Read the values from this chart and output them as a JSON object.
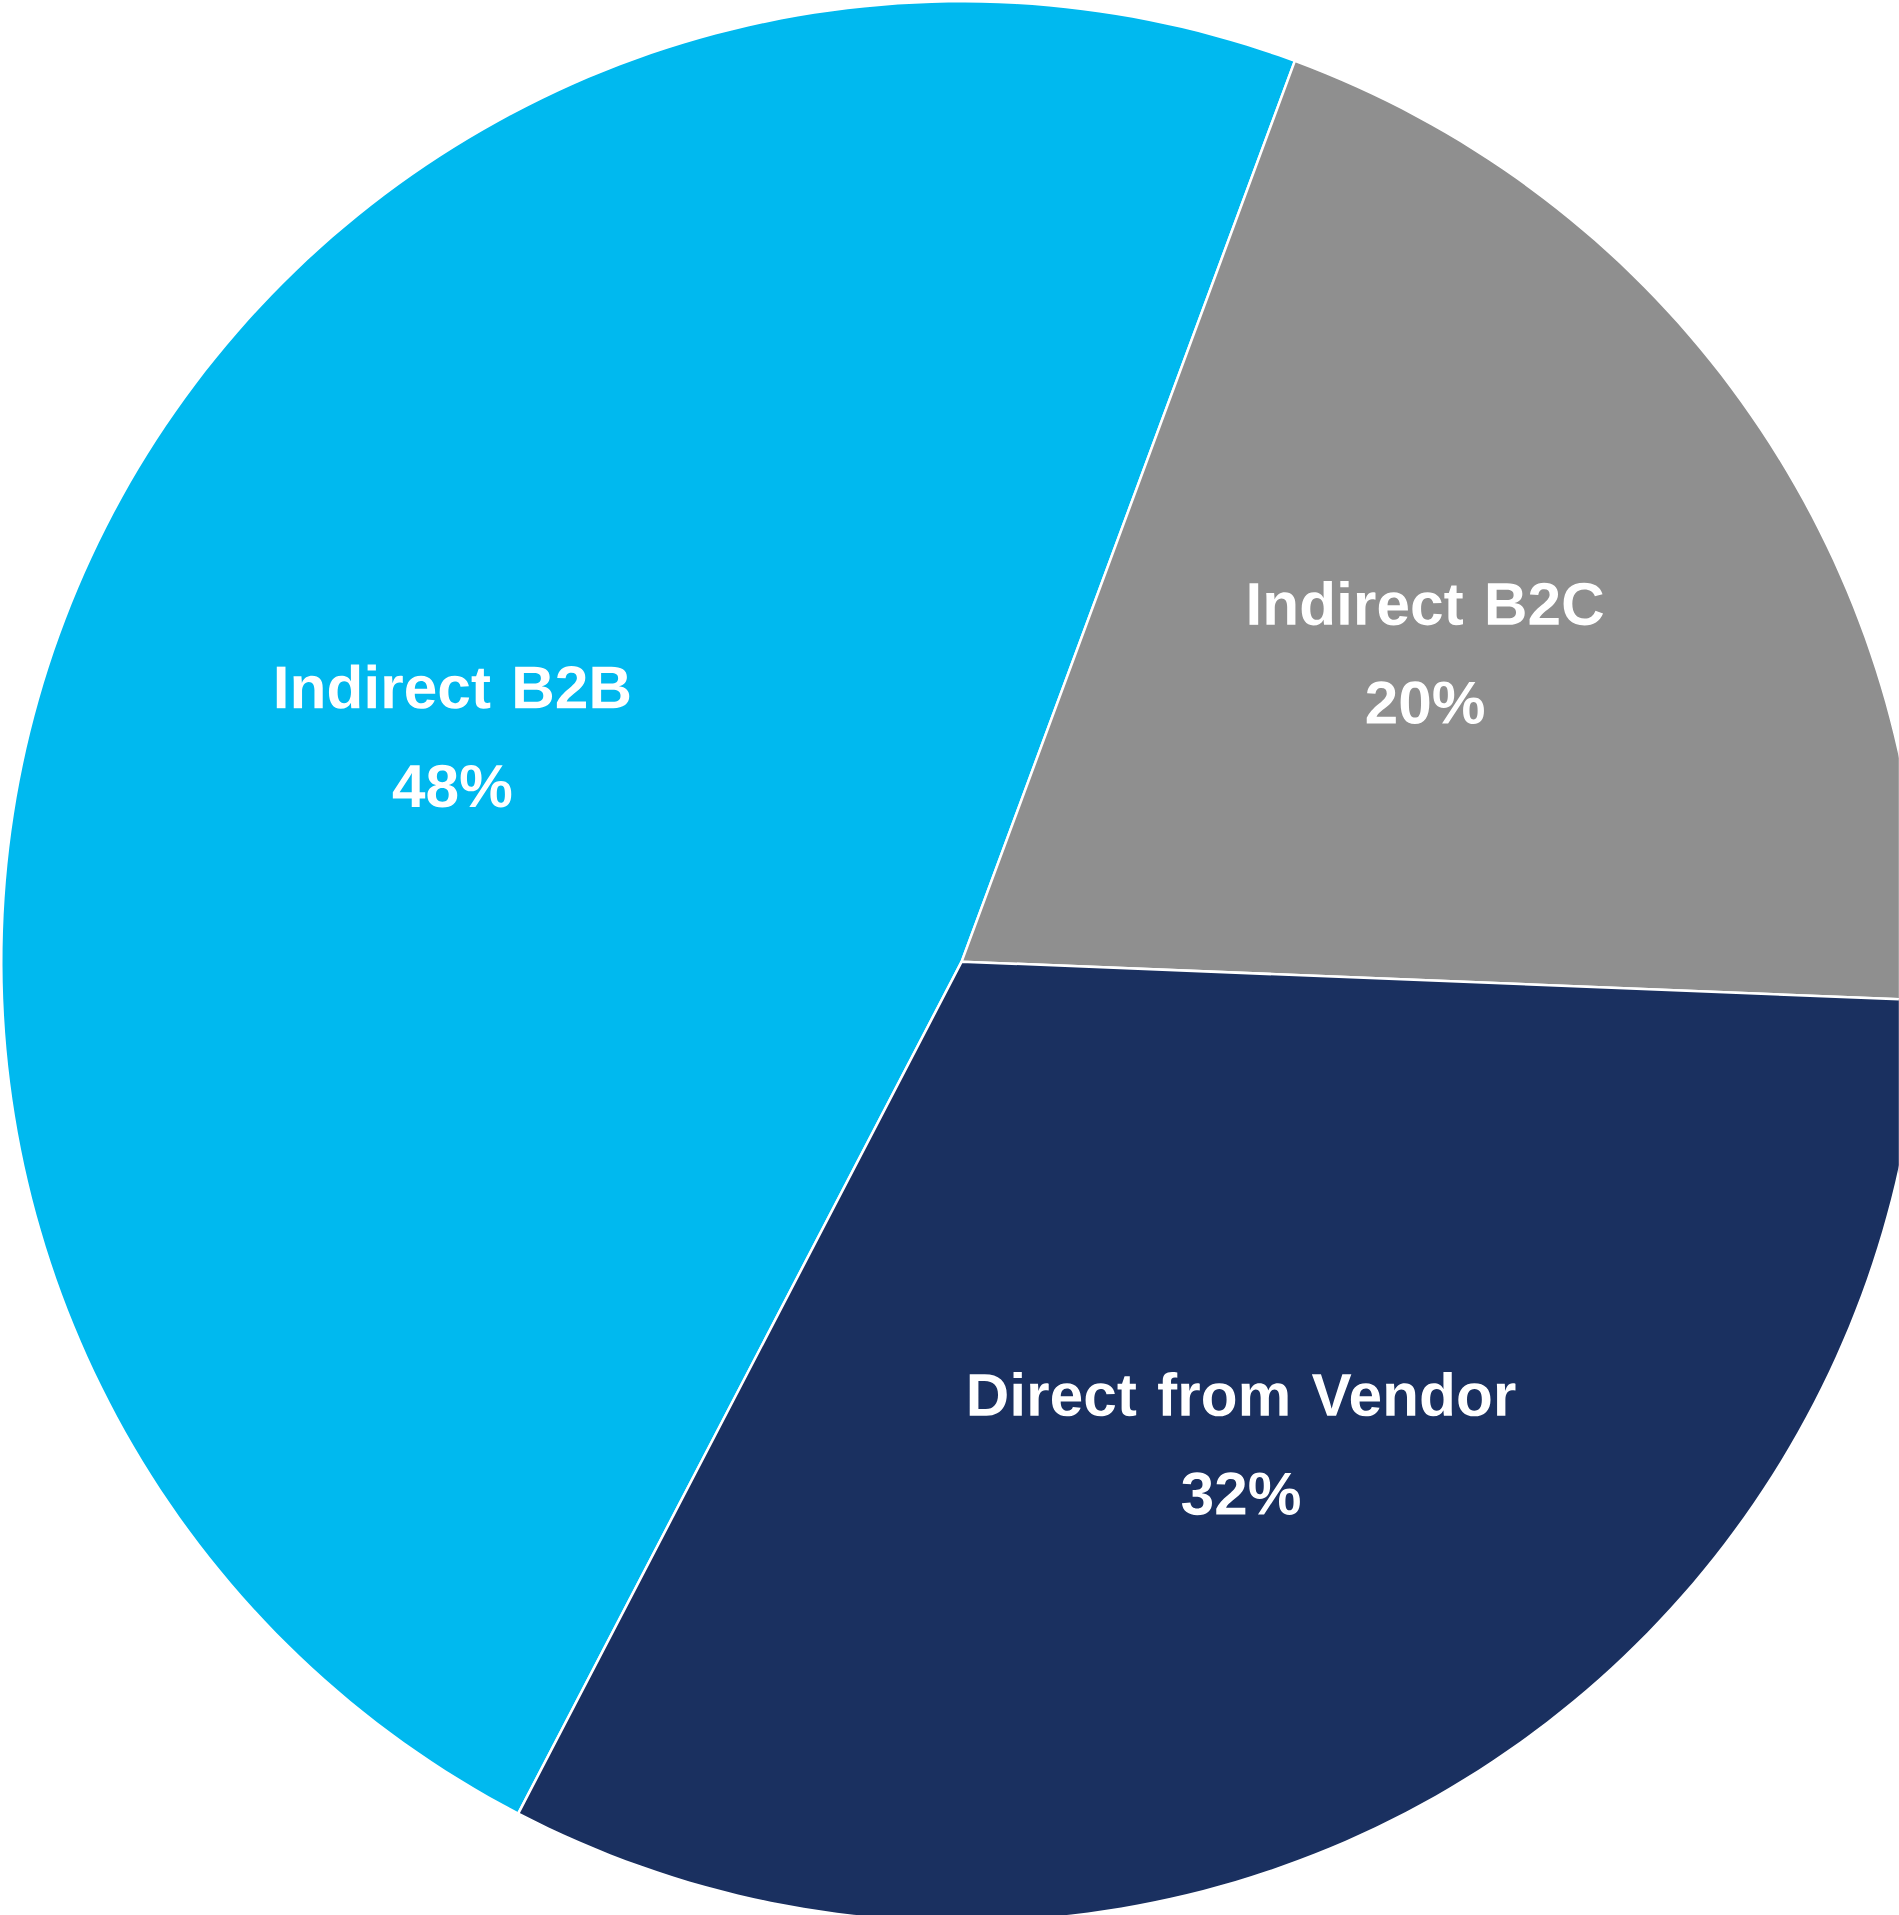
{
  "chart_data": {
    "type": "pie",
    "categories": [
      "Indirect B2B",
      "Indirect B2C",
      "Direct from Vendor"
    ],
    "values": [
      48,
      20,
      32
    ],
    "value_labels": [
      "48%",
      "20%",
      "32%"
    ],
    "colors": [
      "#00b9ef",
      "#8f8f8f",
      "#1a3060"
    ]
  }
}
